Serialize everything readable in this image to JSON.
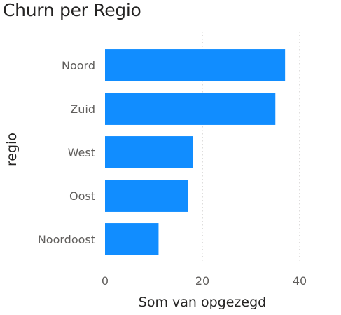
{
  "chart_data": {
    "type": "bar",
    "orientation": "horizontal",
    "title": "Churn per Regio",
    "xlabel": "Som van opgezegd",
    "ylabel": "regio",
    "categories": [
      "Noord",
      "Zuid",
      "West",
      "Oost",
      "Noordoost"
    ],
    "values": [
      37,
      35,
      18,
      17,
      11
    ],
    "xlim": [
      0,
      40
    ],
    "xticks": [
      0,
      20,
      40
    ],
    "grid": true,
    "legend": "none",
    "bar_color": "#118DFF"
  }
}
